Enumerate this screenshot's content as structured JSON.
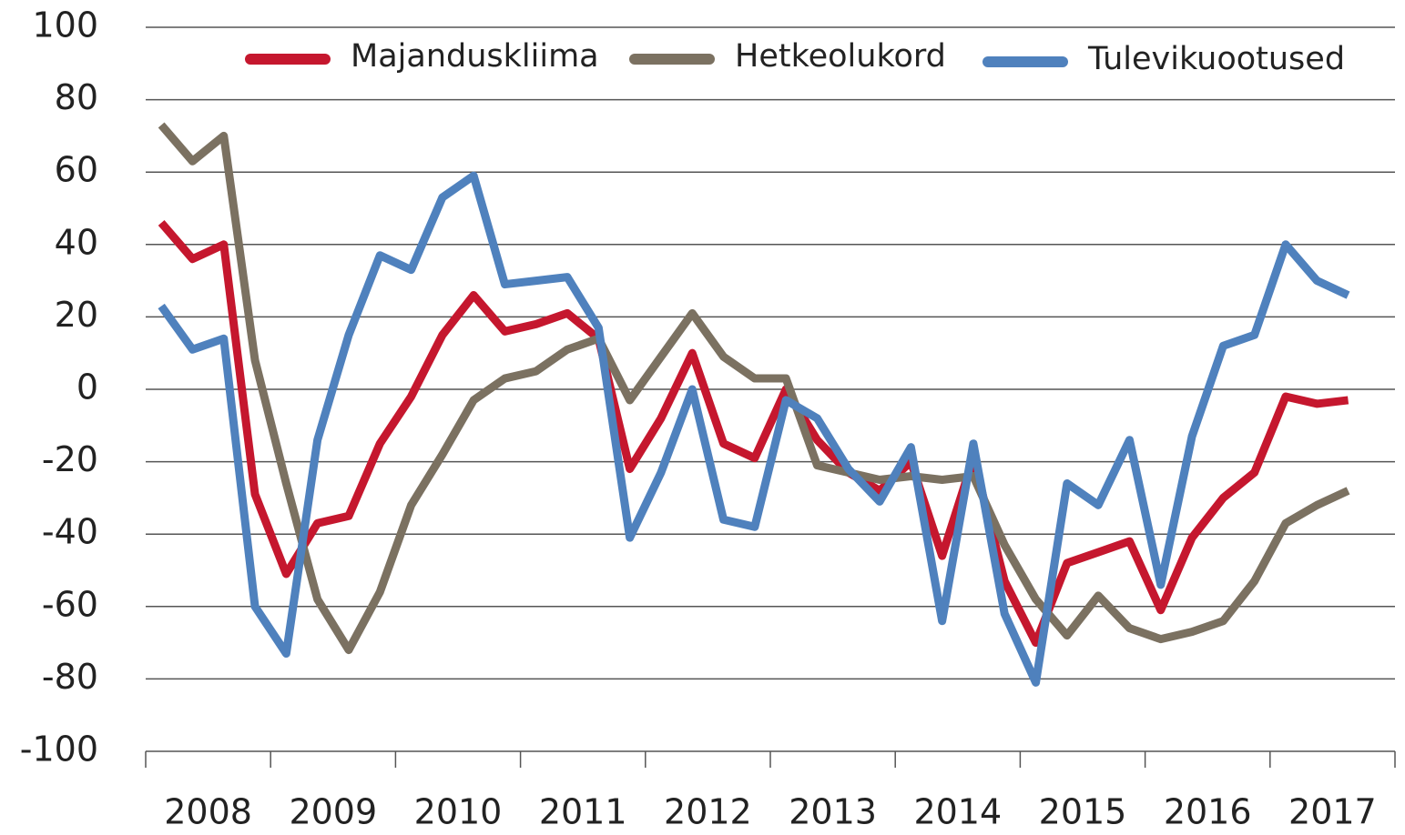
{
  "chart_data": {
    "type": "line",
    "x": [
      2008.125,
      2008.375,
      2008.625,
      2008.875,
      2009.125,
      2009.375,
      2009.625,
      2009.875,
      2010.125,
      2010.375,
      2010.625,
      2010.875,
      2011.125,
      2011.375,
      2011.625,
      2011.875,
      2012.125,
      2012.375,
      2012.625,
      2012.875,
      2013.125,
      2013.375,
      2013.625,
      2013.875,
      2014.125,
      2014.375,
      2014.625,
      2014.875,
      2015.125,
      2015.375,
      2015.625,
      2015.875,
      2016.125,
      2016.375,
      2016.625,
      2016.875,
      2017.125,
      2017.375,
      2017.625
    ],
    "series": [
      {
        "name": "Majanduskliima",
        "color": "#c5172e",
        "values": [
          46,
          36,
          40,
          -29,
          -51,
          -37,
          -35,
          -15,
          -2,
          15,
          26,
          16,
          18,
          21,
          14,
          -22,
          -8,
          10,
          -15,
          -19,
          0,
          -14,
          -23,
          -28,
          -20,
          -46,
          -19,
          -53,
          -70,
          -48,
          -45,
          -42,
          -61,
          -41,
          -30,
          -23,
          -2,
          -4,
          -3
        ]
      },
      {
        "name": "Hetkeolukord",
        "color": "#7b7161",
        "values": [
          73,
          63,
          70,
          8,
          -26,
          -58,
          -72,
          -56,
          -32,
          -18,
          -3,
          3,
          5,
          11,
          14,
          -3,
          9,
          21,
          9,
          3,
          3,
          -21,
          -23,
          -25,
          -24,
          -25,
          -24,
          -43,
          -58,
          -68,
          -57,
          -66,
          -69,
          -67,
          -64,
          -53,
          -37,
          -32,
          -28
        ]
      },
      {
        "name": "Tulevikuootused",
        "color": "#4f81bd",
        "values": [
          23,
          11,
          14,
          -60,
          -73,
          -14,
          15,
          37,
          33,
          53,
          59,
          29,
          30,
          31,
          17,
          -41,
          -23,
          0,
          -36,
          -38,
          -3,
          -8,
          -22,
          -31,
          -16,
          -64,
          -15,
          -62,
          -81,
          -26,
          -32,
          -14,
          -54,
          -13,
          12,
          15,
          40,
          30,
          26
        ]
      }
    ],
    "xlim": [
      2008,
      2018
    ],
    "xticks": [
      2008,
      2009,
      2010,
      2011,
      2012,
      2013,
      2014,
      2015,
      2016,
      2017,
      2018
    ],
    "ylim": [
      -100,
      100
    ],
    "yticks": [
      -100,
      -80,
      -60,
      -40,
      -20,
      0,
      20,
      40,
      60,
      80,
      100
    ],
    "grid": true,
    "legend": "top"
  }
}
